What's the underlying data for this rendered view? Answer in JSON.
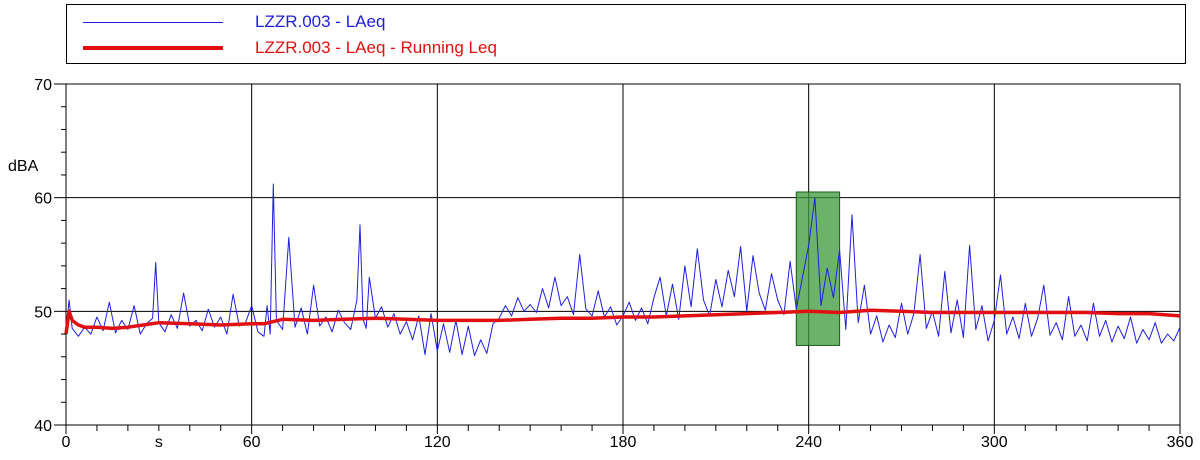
{
  "colors": {
    "laeq": "#1f1fe0",
    "running": "#e01010",
    "highlight": "#3a9a3a",
    "grid": "#000000"
  },
  "legend": {
    "series_1": "LZZR.003 - LAeq",
    "series_2": "LZZR.003 - LAeq - Running Leq"
  },
  "chart_data": {
    "type": "line",
    "ylabel": "dBA",
    "xlabel": "s",
    "xlim": [
      0,
      360
    ],
    "ylim": [
      40,
      70
    ],
    "x_ticks": [
      "0",
      "60",
      "120",
      "180",
      "240",
      "300",
      "360"
    ],
    "y_ticks": [
      "40",
      "50",
      "60",
      "70"
    ],
    "x_unit_label": "s",
    "grid": true,
    "legend_position": "top",
    "highlight_region": {
      "x": [
        236,
        250
      ],
      "y": [
        47,
        60.5
      ]
    },
    "series": [
      {
        "name": "LZZR.003 - LAeq",
        "x": [
          0,
          1,
          2,
          4,
          6,
          8,
          10,
          12,
          14,
          16,
          18,
          20,
          22,
          24,
          26,
          28,
          29,
          30,
          32,
          34,
          36,
          38,
          40,
          42,
          44,
          46,
          48,
          50,
          52,
          54,
          56,
          58,
          60,
          62,
          64,
          65,
          66,
          67,
          68,
          70,
          72,
          74,
          76,
          78,
          80,
          82,
          84,
          86,
          88,
          90,
          92,
          94,
          95,
          96,
          97,
          98,
          100,
          102,
          104,
          106,
          108,
          110,
          112,
          114,
          116,
          118,
          120,
          122,
          124,
          126,
          128,
          130,
          132,
          134,
          136,
          138,
          140,
          142,
          144,
          146,
          148,
          150,
          152,
          154,
          156,
          158,
          160,
          162,
          164,
          166,
          168,
          170,
          172,
          174,
          176,
          178,
          180,
          182,
          184,
          186,
          188,
          190,
          192,
          194,
          196,
          198,
          200,
          202,
          204,
          206,
          208,
          210,
          212,
          214,
          216,
          218,
          220,
          222,
          224,
          226,
          228,
          230,
          232,
          234,
          236,
          238,
          240,
          242,
          244,
          246,
          248,
          250,
          252,
          254,
          256,
          258,
          260,
          262,
          264,
          266,
          268,
          270,
          272,
          274,
          276,
          278,
          280,
          282,
          284,
          286,
          288,
          290,
          292,
          294,
          296,
          298,
          300,
          302,
          304,
          306,
          308,
          310,
          312,
          314,
          316,
          318,
          320,
          322,
          324,
          326,
          328,
          330,
          332,
          334,
          336,
          338,
          340,
          342,
          344,
          346,
          348,
          350,
          352,
          354,
          356,
          358,
          360
        ],
        "values": [
          48.2,
          51.0,
          48.5,
          47.8,
          48.6,
          48.0,
          49.5,
          48.3,
          50.8,
          48.1,
          49.2,
          48.4,
          50.5,
          48.0,
          48.9,
          49.4,
          54.3,
          49.0,
          48.2,
          49.7,
          48.5,
          51.6,
          48.7,
          49.2,
          48.3,
          50.2,
          48.6,
          49.5,
          48.0,
          51.5,
          48.7,
          49.0,
          50.5,
          48.2,
          47.8,
          50.5,
          48.0,
          61.2,
          49.2,
          48.4,
          56.5,
          48.6,
          50.3,
          48.0,
          52.3,
          48.7,
          49.5,
          48.2,
          50.1,
          49.0,
          48.4,
          51.0,
          57.6,
          49.3,
          48.5,
          53.0,
          49.4,
          50.4,
          48.6,
          49.8,
          48.0,
          49.1,
          47.5,
          49.6,
          46.2,
          49.8,
          46.5,
          48.9,
          46.4,
          49.2,
          46.2,
          48.7,
          46.1,
          47.5,
          46.3,
          48.9,
          49.4,
          50.5,
          49.6,
          51.2,
          50.0,
          50.6,
          49.9,
          52.0,
          50.3,
          53.0,
          50.5,
          51.3,
          49.7,
          55.0,
          50.2,
          49.6,
          51.8,
          49.5,
          50.4,
          48.8,
          49.6,
          50.8,
          49.2,
          50.3,
          48.9,
          51.2,
          53.0,
          49.6,
          52.4,
          49.3,
          54.0,
          50.4,
          55.5,
          51.0,
          49.6,
          52.8,
          50.4,
          53.6,
          51.3,
          55.7,
          50.0,
          54.9,
          51.6,
          50.1,
          53.3,
          51.0,
          49.7,
          54.4,
          50.2,
          53.0,
          55.8,
          60.0,
          50.5,
          53.8,
          51.2,
          55.4,
          48.4,
          58.5,
          49.0,
          52.3,
          48.0,
          49.6,
          47.3,
          48.8,
          47.7,
          50.7,
          48.0,
          49.8,
          55.0,
          48.5,
          50.0,
          47.8,
          53.5,
          48.1,
          51.0,
          47.7,
          55.8,
          48.4,
          50.5,
          47.4,
          49.2,
          53.2,
          48.0,
          49.5,
          47.6,
          50.7,
          47.8,
          49.4,
          52.3,
          47.9,
          49.0,
          47.5,
          51.3,
          47.8,
          48.8,
          47.4,
          50.7,
          47.8,
          49.2,
          47.3,
          48.7,
          47.6,
          49.5,
          47.2,
          48.4,
          47.5,
          49.0,
          47.2,
          48.0,
          47.4,
          48.6
        ]
      },
      {
        "name": "LZZR.003 - LAeq - Running Leq",
        "x": [
          0,
          1,
          2,
          4,
          6,
          10,
          15,
          20,
          25,
          30,
          40,
          50,
          60,
          64,
          70,
          80,
          90,
          100,
          110,
          120,
          130,
          140,
          150,
          160,
          170,
          180,
          190,
          200,
          210,
          220,
          230,
          240,
          250,
          260,
          270,
          280,
          290,
          300,
          310,
          320,
          330,
          340,
          350,
          360
        ],
        "values": [
          48.0,
          50.0,
          49.2,
          48.8,
          48.6,
          48.6,
          48.5,
          48.6,
          48.8,
          49.0,
          48.9,
          48.8,
          48.9,
          48.9,
          49.3,
          49.2,
          49.3,
          49.4,
          49.3,
          49.2,
          49.2,
          49.2,
          49.3,
          49.4,
          49.4,
          49.5,
          49.5,
          49.6,
          49.7,
          49.8,
          49.9,
          50.0,
          49.9,
          50.1,
          50.0,
          49.9,
          49.9,
          49.9,
          49.9,
          49.9,
          49.9,
          49.8,
          49.8,
          49.6
        ]
      }
    ]
  }
}
